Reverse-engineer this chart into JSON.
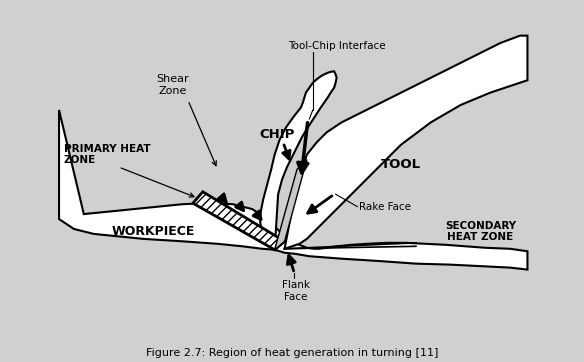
{
  "title": "Figure 2.7: Region of heat generation in turning [11]",
  "bg_color": "#ffffff",
  "fig_bg": "#d0d0d0",
  "labels": {
    "shear_zone": "Shear\nZone",
    "primary_heat": "PRIMARY HEAT\nZONE",
    "chip": "CHIP",
    "tool_chip": "Tool-Chip Interface",
    "rake_face": "Rake Face",
    "tool": "TOOL",
    "workpiece": "WORKPIECE",
    "flank_face": "Flank\nFace",
    "secondary_heat": "SECONDARY\nHEAT ZONE"
  },
  "workpiece": {
    "x": [
      0.3,
      0.3,
      0.6,
      1.0,
      1.5,
      2.0,
      2.8,
      3.5,
      4.0,
      4.4,
      4.65,
      4.75,
      4.85,
      5.05,
      5.35,
      6.0,
      6.8,
      7.5,
      8.2,
      8.8,
      9.4,
      9.75,
      9.75,
      9.4,
      8.9,
      8.5,
      8.1,
      7.7,
      7.3,
      6.9,
      6.5,
      6.2,
      5.9,
      5.7,
      5.55,
      5.45,
      5.3,
      5.15,
      5.0,
      4.85,
      4.7,
      4.5,
      4.2,
      3.8,
      3.3,
      2.8,
      2.3,
      1.8,
      1.3,
      0.8,
      0.3
    ],
    "y": [
      5.0,
      2.8,
      2.6,
      2.5,
      2.45,
      2.4,
      2.35,
      2.3,
      2.25,
      2.2,
      2.18,
      2.15,
      2.12,
      2.1,
      2.05,
      2.0,
      1.95,
      1.9,
      1.88,
      1.85,
      1.82,
      1.78,
      2.15,
      2.2,
      2.22,
      2.25,
      2.28,
      2.3,
      2.32,
      2.32,
      2.3,
      2.28,
      2.25,
      2.22,
      2.2,
      2.2,
      2.22,
      2.28,
      2.35,
      2.45,
      2.6,
      2.8,
      3.0,
      3.1,
      3.12,
      3.1,
      3.05,
      3.0,
      2.95,
      2.9,
      5.0
    ]
  },
  "chip": {
    "x": [
      4.65,
      4.55,
      4.45,
      4.38,
      4.35,
      4.38,
      4.42,
      4.5,
      4.58,
      4.65,
      4.75,
      4.88,
      5.0,
      5.1,
      5.18,
      5.22,
      5.25,
      5.28,
      5.35,
      5.42,
      5.5,
      5.58,
      5.65,
      5.72,
      5.78,
      5.85,
      5.88,
      5.9,
      5.88,
      5.85,
      5.78,
      5.72,
      5.58,
      5.45,
      5.32,
      5.2,
      5.1,
      5.0,
      4.9,
      4.8,
      4.72,
      4.65
    ],
    "y": [
      2.18,
      2.25,
      2.4,
      2.6,
      2.8,
      3.0,
      3.2,
      3.5,
      3.8,
      4.1,
      4.4,
      4.65,
      4.82,
      4.95,
      5.05,
      5.15,
      5.25,
      5.35,
      5.45,
      5.55,
      5.62,
      5.68,
      5.72,
      5.75,
      5.77,
      5.78,
      5.72,
      5.65,
      5.55,
      5.45,
      5.35,
      5.25,
      5.05,
      4.85,
      4.65,
      4.45,
      4.25,
      4.05,
      3.85,
      3.6,
      3.3,
      2.18
    ]
  },
  "tool": {
    "x": [
      4.85,
      5.0,
      5.15,
      5.3,
      5.5,
      5.8,
      6.2,
      6.7,
      7.2,
      7.8,
      8.4,
      9.0,
      9.6,
      9.75,
      9.75,
      9.6,
      9.2,
      8.8,
      8.4,
      8.0,
      7.6,
      7.2,
      6.8,
      6.4,
      6.0,
      5.7,
      5.5,
      5.3,
      5.1,
      4.85
    ],
    "y": [
      2.2,
      2.25,
      2.3,
      2.4,
      2.6,
      2.9,
      3.3,
      3.8,
      4.3,
      4.75,
      5.1,
      5.35,
      5.55,
      5.6,
      6.5,
      6.5,
      6.35,
      6.15,
      5.95,
      5.75,
      5.55,
      5.35,
      5.15,
      4.95,
      4.75,
      4.55,
      4.35,
      4.1,
      3.5,
      2.2
    ]
  },
  "shear_zone": {
    "x": [
      3.0,
      4.65,
      4.85,
      3.2
    ],
    "y": [
      3.12,
      2.18,
      2.35,
      3.35
    ]
  },
  "rake_face_fill": {
    "x": [
      4.65,
      4.85,
      5.3,
      5.1
    ],
    "y": [
      2.18,
      2.35,
      4.0,
      3.8
    ]
  },
  "shear_lines": [
    {
      "x": [
        3.15,
        4.7
      ],
      "y": [
        3.28,
        2.22
      ]
    },
    {
      "x": [
        3.3,
        4.78
      ],
      "y": [
        3.35,
        2.28
      ]
    },
    {
      "x": [
        3.45,
        4.82
      ],
      "y": [
        3.35,
        2.32
      ]
    },
    {
      "x": [
        3.6,
        4.85
      ],
      "y": [
        3.35,
        2.38
      ]
    }
  ]
}
